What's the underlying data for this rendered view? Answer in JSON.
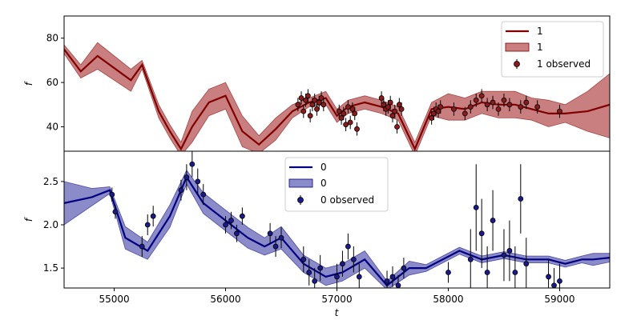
{
  "chart_data": [
    {
      "type": "line",
      "panel": "top",
      "ylabel": "f",
      "xlabel": "",
      "xlim": [
        54550,
        59450
      ],
      "ylim": [
        29,
        90
      ],
      "yticks": [
        40,
        60,
        80
      ],
      "legend": {
        "placement": "top-right",
        "entries": [
          "1",
          "1",
          "1 observed"
        ]
      },
      "colors": {
        "line": "#800000",
        "band": "#a52a2a",
        "marker": "#8b1a1a"
      },
      "series": [
        {
          "name": "1",
          "kind": "mean",
          "x": [
            54550,
            54700,
            54850,
            55150,
            55250,
            55400,
            55500,
            55600,
            55700,
            55850,
            56000,
            56150,
            56300,
            56450,
            56600,
            56750,
            56900,
            57000,
            57100,
            57250,
            57400,
            57550,
            57700,
            57850,
            58000,
            58150,
            58300,
            58450,
            58600,
            58750,
            58900,
            59050,
            59250,
            59450
          ],
          "y": [
            75,
            65,
            72,
            61,
            68,
            47,
            38,
            30,
            40,
            51,
            54,
            38,
            32,
            39,
            47,
            51,
            53,
            45,
            49,
            51,
            49,
            46,
            30,
            48,
            49,
            48,
            51,
            50,
            50,
            48,
            46,
            46,
            47,
            50
          ],
          "lower": [
            73,
            62,
            66,
            56,
            66,
            44,
            35,
            27,
            33,
            45,
            48,
            31,
            28,
            34,
            44,
            49,
            50,
            42,
            46,
            48,
            46,
            43,
            27,
            45,
            43,
            43,
            46,
            44,
            44,
            43,
            40,
            42,
            38,
            35
          ],
          "upper": [
            77,
            68,
            78,
            66,
            70,
            50,
            41,
            33,
            47,
            57,
            60,
            45,
            36,
            44,
            50,
            53,
            56,
            48,
            52,
            54,
            52,
            49,
            33,
            51,
            55,
            53,
            56,
            56,
            56,
            53,
            52,
            50,
            56,
            64
          ]
        },
        {
          "name": "1 observed",
          "kind": "points",
          "x": [
            56650,
            56680,
            56700,
            56720,
            56740,
            56760,
            56780,
            56800,
            56820,
            56840,
            56860,
            56880,
            57020,
            57040,
            57060,
            57080,
            57100,
            57120,
            57140,
            57160,
            57180,
            57400,
            57420,
            57440,
            57460,
            57480,
            57500,
            57520,
            57540,
            57560,
            57580,
            57850,
            57870,
            57890,
            57910,
            57930,
            58050,
            58150,
            58200,
            58250,
            58300,
            58350,
            58400,
            58450,
            58500,
            58550,
            58650,
            58700,
            58800,
            59000
          ],
          "y": [
            50,
            53,
            47,
            52,
            54,
            45,
            50,
            52,
            48,
            51,
            53,
            50,
            47,
            44,
            46,
            41,
            49,
            42,
            48,
            46,
            39,
            53,
            50,
            48,
            49,
            51,
            45,
            47,
            40,
            50,
            48,
            44,
            46,
            48,
            47,
            49,
            48,
            46,
            49,
            52,
            54,
            50,
            51,
            48,
            52,
            50,
            49,
            51,
            49,
            47
          ],
          "yerr": [
            3,
            3,
            3,
            3,
            3,
            3,
            3,
            3,
            3,
            3,
            3,
            3,
            3,
            3,
            3,
            3,
            3,
            3,
            3,
            3,
            3,
            3,
            3,
            3,
            3,
            3,
            3,
            3,
            3,
            3,
            3,
            3,
            3,
            3,
            3,
            3,
            3,
            3,
            3,
            3,
            3,
            3,
            3,
            3,
            3,
            3,
            3,
            3,
            3,
            3
          ]
        }
      ]
    },
    {
      "type": "line",
      "panel": "bottom",
      "ylabel": "f",
      "xlabel": "t",
      "xlim": [
        54550,
        59450
      ],
      "ylim": [
        1.27,
        2.85
      ],
      "yticks": [
        1.5,
        2.0,
        2.5
      ],
      "xticks": [
        55000,
        56000,
        57000,
        58000,
        59000
      ],
      "legend": {
        "placement": "top-center",
        "entries": [
          "0",
          "0",
          "0 observed"
        ]
      },
      "colors": {
        "line": "#000080",
        "band": "#5a5ab4",
        "marker": "#1a1a8b"
      },
      "series": [
        {
          "name": "0",
          "kind": "mean",
          "x": [
            54550,
            54800,
            54960,
            55100,
            55300,
            55500,
            55650,
            55800,
            56000,
            56200,
            56350,
            56500,
            56700,
            56900,
            57050,
            57250,
            57450,
            57650,
            57800,
            57950,
            58100,
            58300,
            58500,
            58700,
            58900,
            59050,
            59200,
            59300,
            59450
          ],
          "y": [
            2.25,
            2.32,
            2.4,
            1.85,
            1.7,
            2.1,
            2.55,
            2.25,
            2.05,
            1.85,
            1.75,
            1.85,
            1.55,
            1.4,
            1.45,
            1.6,
            1.3,
            1.5,
            1.5,
            1.6,
            1.7,
            1.6,
            1.65,
            1.6,
            1.6,
            1.55,
            1.6,
            1.6,
            1.62
          ],
          "lower": [
            2.0,
            2.22,
            2.36,
            1.72,
            1.6,
            1.97,
            2.47,
            2.13,
            1.93,
            1.73,
            1.65,
            1.72,
            1.45,
            1.3,
            1.35,
            1.5,
            1.25,
            1.42,
            1.46,
            1.56,
            1.66,
            1.56,
            1.61,
            1.56,
            1.56,
            1.51,
            1.56,
            1.53,
            1.57
          ],
          "upper": [
            2.5,
            2.42,
            2.44,
            1.98,
            1.8,
            2.23,
            2.63,
            2.37,
            2.17,
            1.97,
            1.85,
            1.98,
            1.65,
            1.5,
            1.55,
            1.7,
            1.35,
            1.58,
            1.54,
            1.64,
            1.74,
            1.64,
            1.69,
            1.64,
            1.64,
            1.59,
            1.64,
            1.67,
            1.67
          ]
        },
        {
          "name": "0 observed",
          "kind": "points",
          "x": [
            54980,
            55010,
            55250,
            55300,
            55350,
            55600,
            55650,
            55700,
            55750,
            55800,
            56000,
            56050,
            56100,
            56150,
            56400,
            56450,
            56500,
            56700,
            56750,
            56800,
            56850,
            57000,
            57050,
            57100,
            57150,
            57200,
            57450,
            57500,
            57550,
            57600,
            58000,
            58200,
            58250,
            58300,
            58350,
            58400,
            58500,
            58550,
            58600,
            58650,
            58700,
            58900,
            58950,
            59000
          ],
          "y": [
            2.35,
            2.15,
            1.75,
            2.0,
            2.1,
            2.4,
            2.55,
            2.7,
            2.5,
            2.35,
            2.0,
            2.05,
            1.9,
            2.1,
            1.9,
            1.75,
            1.85,
            1.6,
            1.45,
            1.35,
            1.5,
            1.4,
            1.55,
            1.75,
            1.6,
            1.4,
            1.35,
            1.4,
            1.3,
            1.5,
            1.45,
            1.6,
            2.2,
            1.9,
            1.45,
            2.05,
            1.65,
            1.7,
            1.45,
            2.3,
            1.55,
            1.4,
            1.3,
            1.35
          ],
          "yerr": [
            0.08,
            0.08,
            0.12,
            0.12,
            0.12,
            0.12,
            0.15,
            0.15,
            0.15,
            0.12,
            0.1,
            0.1,
            0.1,
            0.1,
            0.12,
            0.12,
            0.12,
            0.15,
            0.15,
            0.15,
            0.15,
            0.15,
            0.15,
            0.15,
            0.15,
            0.15,
            0.12,
            0.12,
            0.12,
            0.12,
            0.12,
            0.35,
            0.5,
            0.4,
            0.3,
            0.35,
            0.3,
            0.35,
            0.3,
            0.4,
            0.3,
            0.2,
            0.2,
            0.2
          ]
        }
      ]
    }
  ]
}
